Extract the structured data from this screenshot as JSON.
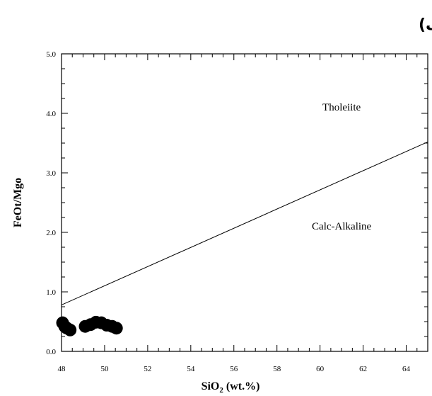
{
  "panel_label": "(الف)",
  "chart_data": {
    "type": "scatter",
    "title": "",
    "xlabel_main": "SiO",
    "xlabel_sub": "2",
    "xlabel_rest": " (wt.%)",
    "ylabel": "FeOt/Mgo",
    "xlim": [
      48,
      65
    ],
    "ylim": [
      0,
      5
    ],
    "x_ticks": [
      48,
      50,
      52,
      54,
      56,
      58,
      60,
      62,
      64
    ],
    "y_ticks": [
      {
        "value": 0,
        "label": "0.0"
      },
      {
        "value": 1,
        "label": "1.0"
      },
      {
        "value": 2,
        "label": "2.0"
      },
      {
        "value": 3,
        "label": "3.0"
      },
      {
        "value": 4,
        "label": "4.0"
      },
      {
        "value": 5,
        "label": "5.0"
      }
    ],
    "boundary_line": {
      "x": [
        48,
        65
      ],
      "y": [
        0.78,
        3.52
      ]
    },
    "regions": [
      {
        "label": "Tholeiite",
        "x": 61,
        "y": 4.05
      },
      {
        "label": "Calc-Alkaline",
        "x": 61,
        "y": 2.05
      }
    ],
    "series": [
      {
        "color": "#000000",
        "points": [
          {
            "x": 48.05,
            "y": 0.48
          },
          {
            "x": 48.15,
            "y": 0.42
          },
          {
            "x": 48.25,
            "y": 0.39
          },
          {
            "x": 48.4,
            "y": 0.36
          },
          {
            "x": 49.1,
            "y": 0.42
          },
          {
            "x": 49.35,
            "y": 0.45
          },
          {
            "x": 49.6,
            "y": 0.49
          },
          {
            "x": 49.85,
            "y": 0.48
          },
          {
            "x": 50.1,
            "y": 0.44
          },
          {
            "x": 50.35,
            "y": 0.42
          },
          {
            "x": 50.55,
            "y": 0.39
          }
        ]
      }
    ]
  }
}
